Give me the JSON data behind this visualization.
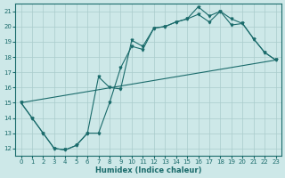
{
  "xlabel": "Humidex (Indice chaleur)",
  "xlim": [
    -0.5,
    23.5
  ],
  "ylim": [
    11.5,
    21.5
  ],
  "xticks": [
    0,
    1,
    2,
    3,
    4,
    5,
    6,
    7,
    8,
    9,
    10,
    11,
    12,
    13,
    14,
    15,
    16,
    17,
    18,
    19,
    20,
    21,
    22,
    23
  ],
  "yticks": [
    12,
    13,
    14,
    15,
    16,
    17,
    18,
    19,
    20,
    21
  ],
  "bg_color": "#cde8e8",
  "grid_color": "#aacccc",
  "line_color": "#1a6b6b",
  "line1_x": [
    0,
    1,
    2,
    3,
    4,
    5,
    6,
    7,
    8,
    9,
    10,
    11,
    12,
    13,
    14,
    15,
    16,
    17,
    18,
    19,
    20,
    21,
    22,
    23
  ],
  "line1_y": [
    15.0,
    14.0,
    13.0,
    12.0,
    11.9,
    12.2,
    13.0,
    16.7,
    16.0,
    15.9,
    19.1,
    18.7,
    19.9,
    20.0,
    20.3,
    20.5,
    21.3,
    20.7,
    21.0,
    20.5,
    20.2,
    19.2,
    18.3,
    17.8
  ],
  "line2_x": [
    0,
    1,
    2,
    3,
    4,
    5,
    6,
    7,
    8,
    9,
    10,
    11,
    12,
    13,
    14,
    15,
    16,
    17,
    18,
    19,
    20,
    21,
    22,
    23
  ],
  "line2_y": [
    15.0,
    14.0,
    13.0,
    12.0,
    11.9,
    12.2,
    13.0,
    13.0,
    15.0,
    17.3,
    18.7,
    18.5,
    19.9,
    20.0,
    20.3,
    20.5,
    20.8,
    20.3,
    21.0,
    20.1,
    20.2,
    19.2,
    18.3,
    17.8
  ],
  "line3_x": [
    0,
    23
  ],
  "line3_y": [
    15.0,
    17.8
  ]
}
